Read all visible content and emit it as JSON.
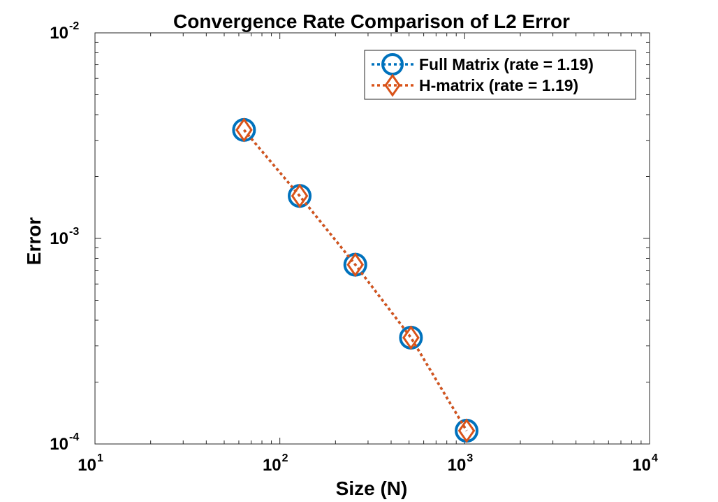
{
  "chart_data": {
    "type": "line",
    "title": "Convergence Rate Comparison of L2 Error",
    "xlabel": "Size (N)",
    "ylabel": "Error",
    "xscale": "log",
    "yscale": "log",
    "xlim": [
      10,
      10000
    ],
    "ylim": [
      0.0001,
      0.01
    ],
    "x_ticks": [
      {
        "value": 10,
        "base": "10",
        "exp": "1"
      },
      {
        "value": 100,
        "base": "10",
        "exp": "2"
      },
      {
        "value": 1000,
        "base": "10",
        "exp": "3"
      },
      {
        "value": 10000,
        "base": "10",
        "exp": "4"
      }
    ],
    "y_ticks": [
      {
        "value": 0.0001,
        "base": "10",
        "exp": "-4"
      },
      {
        "value": 0.001,
        "base": "10",
        "exp": "-3"
      },
      {
        "value": 0.01,
        "base": "10",
        "exp": "-2"
      }
    ],
    "legend_position": "top-right",
    "series": [
      {
        "name": "Full Matrix (rate = 1.19)",
        "color": "#0072BD",
        "marker": "circle",
        "linestyle": "dotted",
        "x": [
          64,
          128,
          256,
          512,
          1024
        ],
        "y": [
          0.00337,
          0.00161,
          0.000745,
          0.000329,
          0.000116
        ]
      },
      {
        "name": "H-matrix (rate = 1.19)",
        "color": "#D95319",
        "marker": "diamond",
        "linestyle": "dotted",
        "x": [
          64,
          128,
          256,
          512,
          1024
        ],
        "y": [
          0.00337,
          0.00161,
          0.000745,
          0.000329,
          0.000116
        ]
      }
    ]
  }
}
